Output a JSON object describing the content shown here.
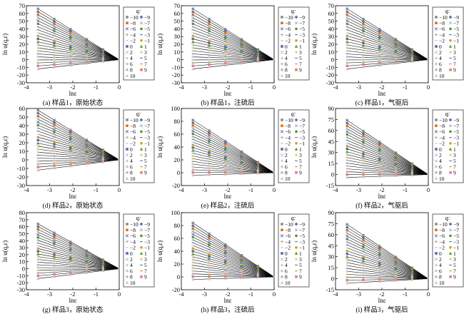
{
  "figure": {
    "q_values": [
      -10,
      -9,
      -8,
      -7,
      -6,
      -5,
      -4,
      -3,
      -2,
      -1,
      0,
      1,
      2,
      3,
      4,
      5,
      6,
      7,
      8,
      9,
      10
    ],
    "x_data": [
      -3.5,
      -2.8,
      -2.1,
      -1.4,
      -0.7,
      0
    ],
    "legend_title": "q:",
    "legend_labels": [
      "−10",
      "−9",
      "−8",
      "−7",
      "−6",
      "−5",
      "−4",
      "−3",
      "−2",
      "−1",
      "0",
      "1",
      "2",
      "3",
      "4",
      "5",
      "6",
      "7",
      "8",
      "9",
      "10"
    ],
    "series_colors": [
      "#8c8c8c",
      "#5470a8",
      "#d9731a",
      "#a8a8a8",
      "#4a6fb0",
      "#5a8a2a",
      "#9a9a9a",
      "#4a6fb0",
      "#c0c0c0",
      "#d4a017",
      "#4a6fb0",
      "#5a9a2a",
      "#c0c0c0",
      "#e0b040",
      "#b0b0b0",
      "#4a6fb0",
      "#c8c8c8",
      "#d88a2a",
      "#b8b8b8",
      "#e08080",
      "#c8c8c8"
    ],
    "series_markers": [
      "square",
      "diamond",
      "square",
      "x",
      "x",
      "circle",
      "plus",
      "dash",
      "dash",
      "circle",
      "square",
      "triangle",
      "x",
      "plus",
      "plus",
      "dash",
      "circle",
      "dash",
      "circle",
      "square",
      "triangle"
    ]
  },
  "chart_data": [
    {
      "type": "scatter",
      "caption": "(a) 样品1，原始状态",
      "xlabel": "lnε",
      "ylabel": "ln u(q,ε)",
      "xlim": [
        -4,
        0
      ],
      "ylim": [
        -30,
        70
      ],
      "yticks": [
        -30,
        -20,
        -10,
        0,
        10,
        20,
        30,
        40,
        50,
        60,
        70
      ],
      "xticks": [
        -4,
        -3,
        -2,
        -1,
        0
      ],
      "y_at_x0": 0,
      "y_max": 66,
      "y_min": -12
    },
    {
      "type": "scatter",
      "caption": "(b) 样品1，注硫后",
      "xlabel": "lnε",
      "ylabel": "ln u(q,ε)",
      "xlim": [
        -4,
        0
      ],
      "ylim": [
        -30,
        70
      ],
      "yticks": [
        -30,
        -20,
        -10,
        0,
        10,
        20,
        30,
        40,
        50,
        60,
        70
      ],
      "xticks": [
        -4,
        -3,
        -2,
        -1,
        0
      ],
      "y_at_x0": 0,
      "y_max": 66,
      "y_min": -12
    },
    {
      "type": "scatter",
      "caption": "(c) 样品1，气驱后",
      "xlabel": "lnε",
      "ylabel": "ln u(q,ε)",
      "xlim": [
        -4,
        0
      ],
      "ylim": [
        -30,
        70
      ],
      "yticks": [
        -30,
        -20,
        -10,
        0,
        10,
        20,
        30,
        40,
        50,
        60,
        70
      ],
      "xticks": [
        -4,
        -3,
        -2,
        -1,
        0
      ],
      "y_at_x0": 0,
      "y_max": 66,
      "y_min": -12
    },
    {
      "type": "scatter",
      "caption": "(d) 样品2，原始状态",
      "xlabel": "lnε",
      "ylabel": "ln u(q,ε)",
      "xlim": [
        -4,
        0
      ],
      "ylim": [
        -30,
        60
      ],
      "yticks": [
        -30,
        -20,
        -10,
        0,
        10,
        20,
        30,
        40,
        50,
        60
      ],
      "xticks": [
        -4,
        -3,
        -2,
        -1,
        0
      ],
      "y_at_x0": 0,
      "y_max": 58,
      "y_min": -12
    },
    {
      "type": "scatter",
      "caption": "(e) 样品2，注硫后",
      "xlabel": "lnε",
      "ylabel": "ln u(q,ε)",
      "xlim": [
        -4,
        0
      ],
      "ylim": [
        -20,
        100
      ],
      "yticks": [
        -20,
        0,
        20,
        40,
        60,
        80,
        100
      ],
      "xticks": [
        -4,
        -3,
        -2,
        -1,
        0
      ],
      "y_at_x0": 0,
      "y_max": 82,
      "y_min": -4
    },
    {
      "type": "scatter",
      "caption": "(f) 样品2，气驱后",
      "xlabel": "lnε",
      "ylabel": "ln u(q,ε)",
      "xlim": [
        -4,
        0
      ],
      "ylim": [
        -15,
        90
      ],
      "yticks": [
        -15,
        0,
        15,
        30,
        45,
        60,
        75,
        90
      ],
      "xticks": [
        -4,
        -3,
        -2,
        -1,
        0
      ],
      "y_at_x0": 0,
      "y_max": 74,
      "y_min": -4
    },
    {
      "type": "scatter",
      "caption": "(g) 样品3，原始状态",
      "xlabel": "lnε",
      "ylabel": "ln u(q,ε)",
      "xlim": [
        -4,
        0
      ],
      "ylim": [
        -30,
        80
      ],
      "yticks": [
        -30,
        -20,
        -10,
        0,
        10,
        20,
        30,
        40,
        50,
        60,
        70,
        80
      ],
      "xticks": [
        -4,
        -3,
        -2,
        -1,
        0
      ],
      "y_at_x0": 0,
      "y_max": 64,
      "y_min": -14
    },
    {
      "type": "scatter",
      "caption": "(h) 样品3，注硫后",
      "xlabel": "lnε",
      "ylabel": "ln u(q,ε)",
      "xlim": [
        -4,
        0
      ],
      "ylim": [
        -20,
        100
      ],
      "yticks": [
        -20,
        0,
        20,
        40,
        60,
        80,
        100
      ],
      "xticks": [
        -4,
        -3,
        -2,
        -1,
        0
      ],
      "y_at_x0": 0,
      "y_max": 84,
      "y_min": -4
    },
    {
      "type": "scatter",
      "caption": "(i) 样品3，气驱后",
      "xlabel": "lnε",
      "ylabel": "ln u(q,ε)",
      "xlim": [
        -4,
        0
      ],
      "ylim": [
        -15,
        90
      ],
      "yticks": [
        -15,
        0,
        15,
        30,
        45,
        60,
        75,
        90
      ],
      "xticks": [
        -4,
        -3,
        -2,
        -1,
        0
      ],
      "y_at_x0": 0,
      "y_max": 74,
      "y_min": -6
    }
  ]
}
